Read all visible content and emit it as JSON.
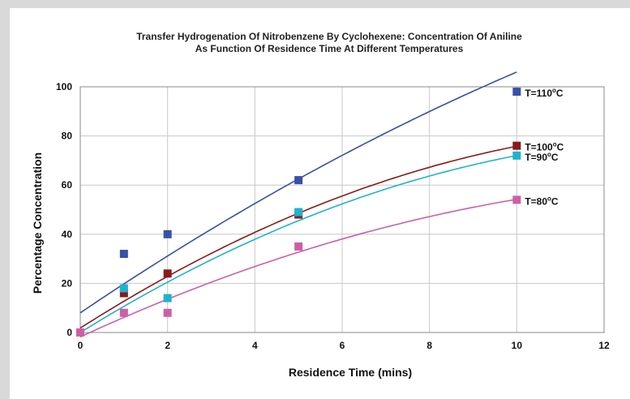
{
  "chart_data": {
    "type": "scatter",
    "title_line1": "Transfer Hydrogenation Of Nitrobenzene By Cyclohexene: Concentration Of Aniline",
    "title_line2": "As Function Of Residence Time At Different Temperatures",
    "xlabel": "Residence Time (mins)",
    "ylabel": "Percentage Concentration",
    "xlim": [
      0,
      12
    ],
    "ylim": [
      0,
      100
    ],
    "xticks": [
      0,
      2,
      4,
      6,
      8,
      10,
      12
    ],
    "yticks": [
      0,
      20,
      40,
      60,
      80,
      100
    ],
    "grid": "vertical and horizontal gridlines",
    "series": [
      {
        "name": "T=110",
        "label_main": "T=110",
        "label_sup": "o",
        "label_unit": "C",
        "color": "#3a4fa8",
        "x": [
          0,
          1,
          2,
          5,
          10
        ],
        "y": [
          0,
          32,
          40,
          62,
          98
        ],
        "fit": [
          8.0,
          12.0,
          -0.22
        ]
      },
      {
        "name": "T=100",
        "label_main": "T=100",
        "label_sup": "o",
        "label_unit": "C",
        "color": "#8b1a1a",
        "x": [
          0,
          1,
          2,
          5,
          10
        ],
        "y": [
          0,
          16,
          24,
          48,
          76
        ],
        "fit": [
          1.8,
          11.3,
          -0.39
        ]
      },
      {
        "name": "T=90",
        "label_main": "T=90",
        "label_sup": "o",
        "label_unit": "C",
        "color": "#1fb3cc",
        "x": [
          0,
          1,
          2,
          5,
          10
        ],
        "y": [
          0,
          18,
          14,
          49,
          72
        ],
        "fit": [
          0.0,
          11.0,
          -0.38
        ]
      },
      {
        "name": "T=80",
        "label_main": "T=80",
        "label_sup": "o",
        "label_unit": "C",
        "color": "#cc5fa8",
        "x": [
          0,
          1,
          2,
          5,
          10
        ],
        "y": [
          0,
          8,
          8,
          35,
          54
        ],
        "fit": [
          -1.8,
          8.2,
          -0.26
        ]
      }
    ]
  }
}
